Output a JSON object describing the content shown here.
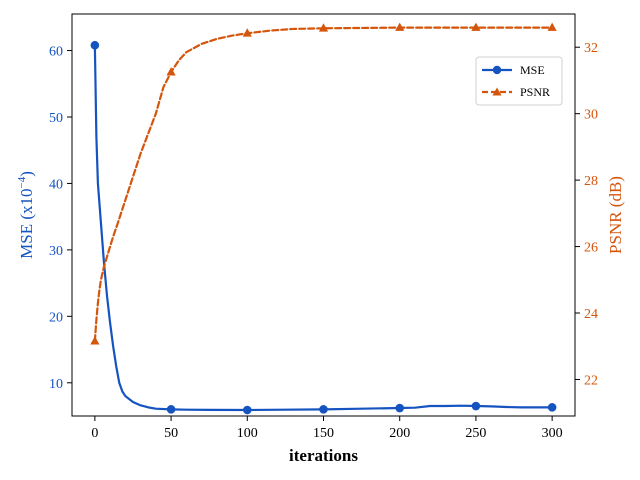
{
  "chart_data": {
    "type": "line",
    "title": "",
    "xlabel": "iterations",
    "ylabel_left": "MSE (x10",
    "ylabel_left_exp": "−4",
    "ylabel_left_close": ")",
    "ylabel_right": "PSNR (dB)",
    "xlim": [
      -15,
      315
    ],
    "ylim_left": [
      5,
      65.5
    ],
    "ylim_right": [
      20.9,
      33
    ],
    "xticks": [
      0,
      50,
      100,
      150,
      200,
      250,
      300
    ],
    "yticks_left": [
      10,
      20,
      30,
      40,
      50,
      60
    ],
    "yticks_right": [
      22,
      24,
      26,
      28,
      30,
      32
    ],
    "legend_position": "top-right",
    "series": [
      {
        "name": "MSE",
        "axis": "left",
        "color": "#1554c0",
        "line_style": "solid",
        "marker": "circle",
        "marker_x": [
          0,
          50,
          100,
          150,
          200,
          250,
          300
        ],
        "marker_y": [
          60.8,
          6.0,
          5.9,
          6.0,
          6.2,
          6.5,
          6.3
        ],
        "curve_x": [
          0,
          1,
          2,
          3,
          4,
          6,
          8,
          10,
          12,
          14,
          16,
          18,
          20,
          25,
          30,
          35,
          40,
          50,
          60,
          75,
          100,
          125,
          150,
          175,
          200,
          210,
          220,
          230,
          240,
          250,
          260,
          270,
          280,
          290,
          300
        ],
        "curve_y": [
          60.8,
          47,
          40,
          37,
          34,
          28,
          23,
          19,
          15.5,
          12.5,
          10,
          8.7,
          8.0,
          7.1,
          6.6,
          6.3,
          6.1,
          6.0,
          5.95,
          5.92,
          5.9,
          5.95,
          6.0,
          6.1,
          6.2,
          6.25,
          6.5,
          6.5,
          6.55,
          6.5,
          6.45,
          6.35,
          6.3,
          6.3,
          6.3
        ]
      },
      {
        "name": "PSNR",
        "axis": "right",
        "color": "#d4550c",
        "line_style": "dashed",
        "marker": "triangle",
        "marker_x": [
          0,
          50,
          100,
          150,
          200,
          250,
          300
        ],
        "marker_y": [
          23.15,
          31.25,
          32.42,
          32.57,
          32.59,
          32.59,
          32.59
        ],
        "curve_x": [
          0,
          1,
          2,
          3,
          4,
          6,
          8,
          10,
          12,
          15,
          20,
          25,
          30,
          35,
          40,
          45,
          50,
          55,
          60,
          70,
          80,
          90,
          100,
          115,
          130,
          150,
          175,
          200,
          250,
          300
        ],
        "curve_y": [
          23.15,
          23.8,
          24.3,
          24.7,
          25.0,
          25.4,
          25.7,
          26.0,
          26.3,
          26.7,
          27.4,
          28.1,
          28.8,
          29.4,
          30.0,
          30.8,
          31.25,
          31.6,
          31.85,
          32.1,
          32.25,
          32.35,
          32.42,
          32.5,
          32.55,
          32.57,
          32.58,
          32.59,
          32.59,
          32.59
        ]
      }
    ]
  }
}
